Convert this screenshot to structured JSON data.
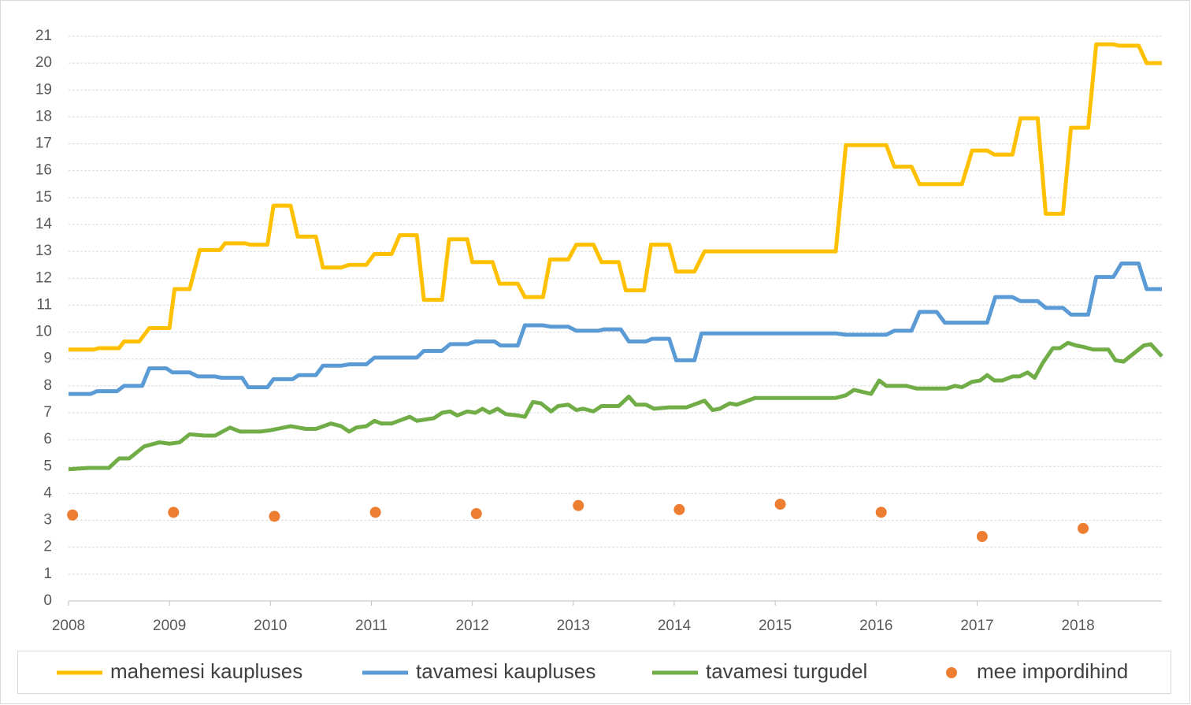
{
  "chart_data": {
    "type": "line",
    "xlim": [
      2008,
      2018.83
    ],
    "xticks": [
      2008,
      2009,
      2010,
      2011,
      2012,
      2013,
      2014,
      2015,
      2016,
      2017,
      2018
    ],
    "ylim": [
      0,
      21
    ],
    "yticks": [
      0,
      1,
      2,
      3,
      4,
      5,
      6,
      7,
      8,
      9,
      10,
      11,
      12,
      13,
      14,
      15,
      16,
      17,
      18,
      19,
      20,
      21
    ],
    "grid": true,
    "legend": "bottom",
    "series": [
      {
        "name": "mahemesi kaupluses",
        "color": "#ffc000",
        "type": "line",
        "x": [
          2008.0,
          2008.25,
          2008.3,
          2008.5,
          2008.55,
          2008.7,
          2008.8,
          2009.0,
          2009.05,
          2009.2,
          2009.3,
          2009.5,
          2009.55,
          2009.75,
          2009.8,
          2009.97,
          2010.03,
          2010.2,
          2010.27,
          2010.45,
          2010.52,
          2010.7,
          2010.78,
          2010.95,
          2011.03,
          2011.2,
          2011.28,
          2011.45,
          2011.52,
          2011.7,
          2011.77,
          2011.95,
          2012.0,
          2012.2,
          2012.27,
          2012.45,
          2012.52,
          2012.7,
          2012.77,
          2012.95,
          2013.03,
          2013.2,
          2013.28,
          2013.45,
          2013.52,
          2013.7,
          2013.77,
          2013.95,
          2014.02,
          2014.2,
          2014.3,
          2015.6,
          2015.7,
          2016.1,
          2016.18,
          2016.35,
          2016.43,
          2016.85,
          2016.95,
          2017.1,
          2017.17,
          2017.35,
          2017.43,
          2017.6,
          2017.68,
          2017.85,
          2017.93,
          2018.1,
          2018.18,
          2018.35,
          2018.4,
          2018.6,
          2018.68,
          2018.83
        ],
        "values": [
          9.35,
          9.35,
          9.4,
          9.4,
          9.65,
          9.65,
          10.15,
          10.15,
          11.6,
          11.6,
          13.05,
          13.05,
          13.3,
          13.3,
          13.25,
          13.25,
          14.7,
          14.7,
          13.55,
          13.55,
          12.4,
          12.4,
          12.5,
          12.5,
          12.9,
          12.9,
          13.6,
          13.6,
          11.2,
          11.2,
          13.45,
          13.45,
          12.6,
          12.6,
          11.8,
          11.8,
          11.3,
          11.3,
          12.7,
          12.7,
          13.25,
          13.25,
          12.6,
          12.6,
          11.55,
          11.55,
          13.25,
          13.25,
          12.25,
          12.25,
          13.0,
          13.0,
          16.95,
          16.95,
          16.15,
          16.15,
          15.5,
          15.5,
          16.75,
          16.75,
          16.6,
          16.6,
          17.95,
          17.95,
          14.4,
          14.4,
          17.6,
          17.6,
          20.7,
          20.7,
          20.65,
          20.65,
          20.0,
          20.0
        ]
      },
      {
        "name": "tavamesi kaupluses",
        "color": "#5b9bd5",
        "type": "line",
        "x": [
          2008.0,
          2008.22,
          2008.28,
          2008.48,
          2008.55,
          2008.73,
          2008.8,
          2008.97,
          2009.03,
          2009.2,
          2009.28,
          2009.45,
          2009.52,
          2009.72,
          2009.78,
          2009.97,
          2010.03,
          2010.22,
          2010.28,
          2010.45,
          2010.52,
          2010.7,
          2010.78,
          2010.95,
          2011.03,
          2011.45,
          2011.52,
          2011.7,
          2011.78,
          2011.95,
          2012.03,
          2012.22,
          2012.28,
          2012.45,
          2012.52,
          2012.7,
          2012.78,
          2012.95,
          2013.03,
          2013.25,
          2013.3,
          2013.47,
          2013.55,
          2013.72,
          2013.78,
          2013.95,
          2014.02,
          2014.2,
          2014.27,
          2015.6,
          2015.7,
          2016.1,
          2016.18,
          2016.35,
          2016.43,
          2016.6,
          2016.68,
          2017.1,
          2017.18,
          2017.35,
          2017.43,
          2017.6,
          2017.68,
          2017.85,
          2017.93,
          2018.1,
          2018.18,
          2018.35,
          2018.43,
          2018.6,
          2018.68,
          2018.83
        ],
        "values": [
          7.7,
          7.7,
          7.8,
          7.8,
          8.0,
          8.0,
          8.65,
          8.65,
          8.5,
          8.5,
          8.35,
          8.35,
          8.3,
          8.3,
          7.95,
          7.95,
          8.25,
          8.25,
          8.4,
          8.4,
          8.75,
          8.75,
          8.8,
          8.8,
          9.05,
          9.05,
          9.3,
          9.3,
          9.55,
          9.55,
          9.65,
          9.65,
          9.5,
          9.5,
          10.25,
          10.25,
          10.2,
          10.2,
          10.05,
          10.05,
          10.1,
          10.1,
          9.65,
          9.65,
          9.75,
          9.75,
          8.95,
          8.95,
          9.95,
          9.95,
          9.9,
          9.9,
          10.05,
          10.05,
          10.75,
          10.75,
          10.35,
          10.35,
          11.3,
          11.3,
          11.15,
          11.15,
          10.9,
          10.9,
          10.65,
          10.65,
          12.05,
          12.05,
          12.55,
          12.55,
          11.6,
          11.6
        ]
      },
      {
        "name": "tavamesi turgudel",
        "color": "#70ad47",
        "type": "line",
        "x": [
          2008.0,
          2008.2,
          2008.4,
          2008.5,
          2008.6,
          2008.75,
          2008.9,
          2009.0,
          2009.1,
          2009.2,
          2009.35,
          2009.45,
          2009.6,
          2009.7,
          2009.9,
          2010.0,
          2010.2,
          2010.35,
          2010.45,
          2010.6,
          2010.7,
          2010.78,
          2010.85,
          2010.95,
          2011.03,
          2011.1,
          2011.2,
          2011.38,
          2011.45,
          2011.62,
          2011.7,
          2011.78,
          2011.85,
          2011.95,
          2012.03,
          2012.1,
          2012.17,
          2012.25,
          2012.33,
          2012.45,
          2012.52,
          2012.6,
          2012.68,
          2012.78,
          2012.85,
          2012.95,
          2013.03,
          2013.1,
          2013.2,
          2013.28,
          2013.45,
          2013.55,
          2013.62,
          2013.72,
          2013.8,
          2013.95,
          2014.12,
          2014.3,
          2014.38,
          2014.45,
          2014.55,
          2014.62,
          2014.8,
          2015.6,
          2015.7,
          2015.78,
          2015.95,
          2016.03,
          2016.1,
          2016.3,
          2016.4,
          2016.7,
          2016.78,
          2016.85,
          2016.95,
          2017.03,
          2017.1,
          2017.17,
          2017.25,
          2017.35,
          2017.42,
          2017.5,
          2017.57,
          2017.65,
          2017.75,
          2017.82,
          2017.9,
          2017.98,
          2018.05,
          2018.15,
          2018.3,
          2018.37,
          2018.45,
          2018.55,
          2018.65,
          2018.72,
          2018.83
        ],
        "values": [
          4.9,
          4.95,
          4.95,
          5.3,
          5.3,
          5.75,
          5.9,
          5.85,
          5.9,
          6.2,
          6.15,
          6.15,
          6.45,
          6.3,
          6.3,
          6.35,
          6.5,
          6.4,
          6.4,
          6.6,
          6.5,
          6.3,
          6.45,
          6.5,
          6.7,
          6.6,
          6.6,
          6.85,
          6.7,
          6.8,
          7.0,
          7.05,
          6.9,
          7.05,
          7.0,
          7.15,
          7.0,
          7.15,
          6.95,
          6.9,
          6.85,
          7.4,
          7.35,
          7.05,
          7.25,
          7.3,
          7.1,
          7.15,
          7.05,
          7.25,
          7.25,
          7.6,
          7.3,
          7.3,
          7.15,
          7.2,
          7.2,
          7.45,
          7.1,
          7.15,
          7.35,
          7.3,
          7.55,
          7.55,
          7.65,
          7.85,
          7.7,
          8.2,
          8.0,
          8.0,
          7.9,
          7.9,
          8.0,
          7.95,
          8.15,
          8.2,
          8.4,
          8.2,
          8.2,
          8.35,
          8.35,
          8.5,
          8.3,
          8.85,
          9.4,
          9.4,
          9.6,
          9.5,
          9.45,
          9.35,
          9.35,
          8.95,
          8.9,
          9.2,
          9.5,
          9.55,
          9.1
        ]
      },
      {
        "name": "mee impordihind",
        "color": "#ed7d31",
        "type": "scatter",
        "x": [
          2008.04,
          2009.04,
          2010.04,
          2011.04,
          2012.04,
          2013.05,
          2014.05,
          2015.05,
          2016.05,
          2017.05,
          2018.05
        ],
        "values": [
          3.2,
          3.3,
          3.15,
          3.3,
          3.25,
          3.55,
          3.4,
          3.6,
          3.3,
          2.4,
          2.7
        ]
      }
    ]
  }
}
